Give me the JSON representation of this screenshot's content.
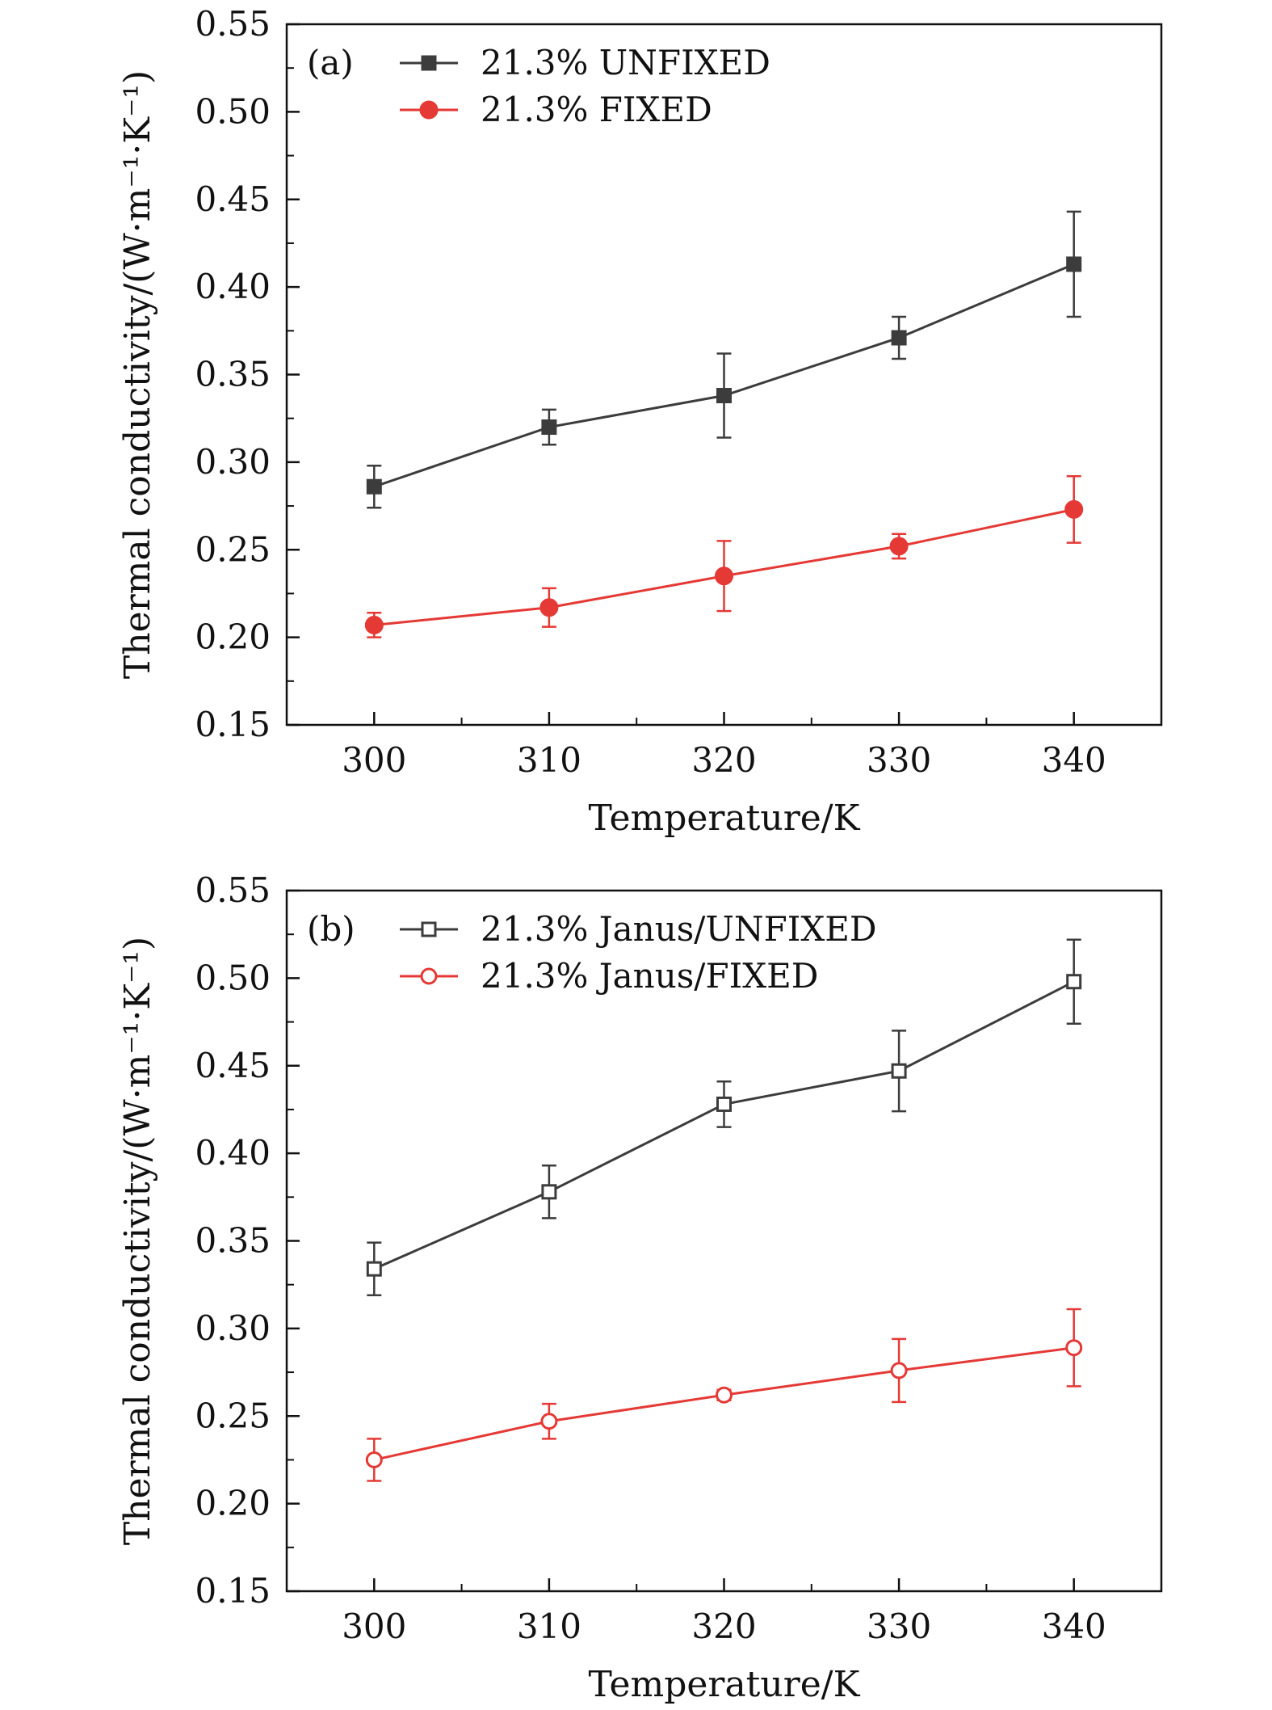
{
  "chart_data": [
    {
      "type": "line",
      "panel_label": "(a)",
      "xlabel": "Temperature/K",
      "ylabel": "Thermal conductivity/(W·m⁻¹·K⁻¹)",
      "xlim": [
        295,
        345
      ],
      "ylim": [
        0.15,
        0.55
      ],
      "x": [
        300,
        310,
        320,
        330,
        340
      ],
      "x_tick_labels": [
        "300",
        "310",
        "320",
        "330",
        "340"
      ],
      "y_tick_labels": [
        "0.15",
        "0.20",
        "0.25",
        "0.30",
        "0.35",
        "0.40",
        "0.45",
        "0.50",
        "0.55"
      ],
      "grid": false,
      "legend_position": "top-left",
      "series": [
        {
          "name": "21.3% UNFIXED",
          "color": "#3c3c3c",
          "marker": "filled-square",
          "values": [
            0.286,
            0.32,
            0.338,
            0.371,
            0.413
          ],
          "error": [
            0.012,
            0.01,
            0.024,
            0.012,
            0.03
          ]
        },
        {
          "name": "21.3% FIXED",
          "color": "#e53935",
          "marker": "filled-circle",
          "values": [
            0.207,
            0.217,
            0.235,
            0.252,
            0.273
          ],
          "error": [
            0.007,
            0.011,
            0.02,
            0.007,
            0.019
          ]
        }
      ]
    },
    {
      "type": "line",
      "panel_label": "(b)",
      "xlabel": "Temperature/K",
      "ylabel": "Thermal conductivity/(W·m⁻¹·K⁻¹)",
      "xlim": [
        295,
        345
      ],
      "ylim": [
        0.15,
        0.55
      ],
      "x": [
        300,
        310,
        320,
        330,
        340
      ],
      "x_tick_labels": [
        "300",
        "310",
        "320",
        "330",
        "340"
      ],
      "y_tick_labels": [
        "0.15",
        "0.20",
        "0.25",
        "0.30",
        "0.35",
        "0.40",
        "0.45",
        "0.50",
        "0.55"
      ],
      "grid": false,
      "legend_position": "top-left",
      "series": [
        {
          "name": "21.3% Janus/UNFIXED",
          "color": "#3c3c3c",
          "marker": "open-square",
          "values": [
            0.334,
            0.378,
            0.428,
            0.447,
            0.498
          ],
          "error": [
            0.015,
            0.015,
            0.013,
            0.023,
            0.024
          ]
        },
        {
          "name": "21.3% Janus/FIXED",
          "color": "#e53935",
          "marker": "open-circle",
          "values": [
            0.225,
            0.247,
            0.262,
            0.276,
            0.289
          ],
          "error": [
            0.012,
            0.01,
            0.003,
            0.018,
            0.022
          ]
        }
      ]
    }
  ]
}
